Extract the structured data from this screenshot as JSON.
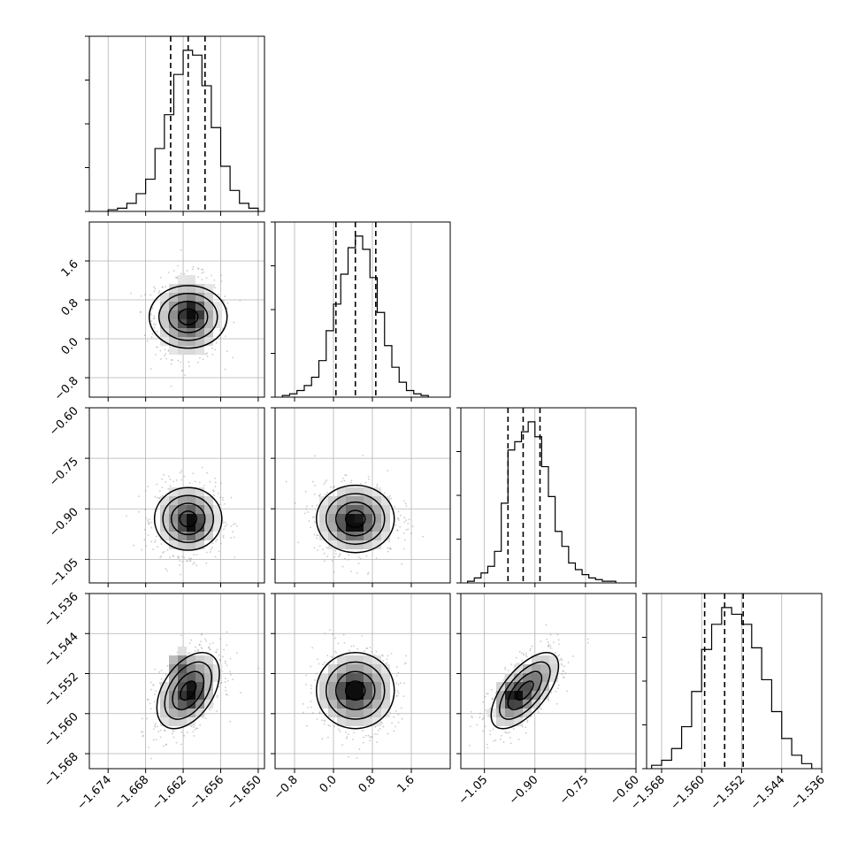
{
  "colors": {
    "ink": "#000000",
    "grid": "#b0b0b0",
    "points": "#8c8c8c",
    "fill_dark": "#000000",
    "fill_light": "#ffffff"
  },
  "chart_data": [
    {
      "type": "histogram",
      "panel": "p0_hist",
      "param_index": 0,
      "xlim": [
        -1.677,
        -1.649
      ],
      "bin_edges": [
        -1.674,
        -1.6725,
        -1.671,
        -1.6695,
        -1.668,
        -1.6665,
        -1.665,
        -1.6635,
        -1.662,
        -1.6605,
        -1.659,
        -1.6575,
        -1.656,
        -1.6545,
        -1.653,
        -1.6515,
        -1.65
      ],
      "counts": [
        1,
        2,
        5,
        11,
        20,
        39,
        60,
        85,
        100,
        97,
        78,
        52,
        28,
        13,
        5,
        2
      ],
      "quantiles_16_50_84": [
        -1.664,
        -1.6612,
        -1.6585
      ],
      "grid": true
    },
    {
      "type": "histogram",
      "panel": "p1_hist",
      "param_index": 1,
      "xlim": [
        -1.2,
        2.4
      ],
      "bin_edges": [
        -1.05,
        -0.9,
        -0.75,
        -0.6,
        -0.45,
        -0.3,
        -0.15,
        0.0,
        0.15,
        0.3,
        0.45,
        0.6,
        0.75,
        0.9,
        1.05,
        1.2,
        1.35,
        1.5,
        1.65,
        1.8,
        1.95
      ],
      "counts": [
        1,
        2,
        4,
        7,
        12,
        22,
        40,
        56,
        74,
        90,
        97,
        89,
        72,
        51,
        31,
        18,
        9,
        4,
        2,
        1
      ],
      "quantiles_16_50_84": [
        0.05,
        0.45,
        0.87
      ],
      "grid": true
    },
    {
      "type": "histogram",
      "panel": "p2_hist",
      "param_index": 2,
      "xlim": [
        -1.12,
        -0.6
      ],
      "bin_edges": [
        -1.1,
        -1.08,
        -1.06,
        -1.04,
        -1.02,
        -1.0,
        -0.98,
        -0.96,
        -0.94,
        -0.92,
        -0.9,
        -0.88,
        -0.86,
        -0.84,
        -0.82,
        -0.8,
        -0.78,
        -0.76,
        -0.74,
        -0.72,
        -0.7,
        -0.68,
        -0.66
      ],
      "counts": [
        1,
        3,
        6,
        10,
        19,
        48,
        80,
        85,
        91,
        97,
        88,
        70,
        52,
        31,
        22,
        12,
        8,
        5,
        3,
        2,
        1,
        1
      ],
      "quantiles_16_50_84": [
        -0.98,
        -0.935,
        -0.885
      ],
      "grid": true
    },
    {
      "type": "histogram",
      "panel": "p3_hist",
      "param_index": 3,
      "xlim": [
        -1.571,
        -1.536
      ],
      "bin_edges": [
        -1.57,
        -1.568,
        -1.566,
        -1.564,
        -1.562,
        -1.56,
        -1.558,
        -1.556,
        -1.554,
        -1.552,
        -1.55,
        -1.548,
        -1.546,
        -1.544,
        -1.542,
        -1.54,
        -1.538
      ],
      "counts": [
        2,
        5,
        12,
        25,
        46,
        71,
        86,
        96,
        92,
        86,
        72,
        53,
        34,
        18,
        8,
        3
      ],
      "quantiles_16_50_84": [
        -1.5594,
        -1.5554,
        -1.5517
      ],
      "grid": true
    },
    {
      "type": "scatter",
      "style": "2d-density",
      "panel": "p1_vs_p0",
      "xlim": [
        -1.677,
        -1.649
      ],
      "ylim": [
        -1.2,
        2.4
      ],
      "mean": [
        -1.6612,
        0.45
      ],
      "sd": [
        0.0025,
        0.4
      ],
      "correlation": 0.0,
      "density_peaks": [
        [
          -1.6605,
          0.5
        ]
      ],
      "grid": true
    },
    {
      "type": "scatter",
      "style": "2d-density",
      "panel": "p2_vs_p0",
      "xlim": [
        -1.677,
        -1.649
      ],
      "ylim": [
        -1.12,
        -0.6
      ],
      "mean": [
        -1.6612,
        -0.93
      ],
      "sd": [
        0.0025,
        0.05
      ],
      "correlation": 0.0,
      "density_peaks": [
        [
          -1.6605,
          -0.95
        ]
      ],
      "grid": true
    },
    {
      "type": "scatter",
      "style": "2d-density",
      "panel": "p2_vs_p1",
      "xlim": [
        -1.2,
        2.4
      ],
      "ylim": [
        -1.12,
        -0.6
      ],
      "mean": [
        0.45,
        -0.93
      ],
      "sd": [
        0.4,
        0.05
      ],
      "correlation": 0.0,
      "density_peaks": [
        [
          0.4,
          -0.95
        ]
      ],
      "grid": true
    },
    {
      "type": "scatter",
      "style": "2d-density",
      "panel": "p3_vs_p0",
      "xlim": [
        -1.677,
        -1.649
      ],
      "ylim": [
        -1.571,
        -1.536
      ],
      "mean": [
        -1.6612,
        -1.5554
      ],
      "sd": [
        0.0025,
        0.0038
      ],
      "correlation": 0.45,
      "density_peaks": [
        [
          -1.6625,
          -1.5505
        ],
        [
          -1.6605,
          -1.5565
        ]
      ],
      "grid": true
    },
    {
      "type": "scatter",
      "style": "2d-density",
      "panel": "p3_vs_p1",
      "xlim": [
        -1.2,
        2.4
      ],
      "ylim": [
        -1.571,
        -1.536
      ],
      "mean": [
        0.45,
        -1.5554
      ],
      "sd": [
        0.4,
        0.0038
      ],
      "correlation": 0.0,
      "density_peaks": [
        [
          0.4,
          -1.5554
        ]
      ],
      "grid": true
    },
    {
      "type": "scatter",
      "style": "2d-density",
      "panel": "p3_vs_p2",
      "xlim": [
        -1.12,
        -0.6
      ],
      "ylim": [
        -1.571,
        -1.536
      ],
      "mean": [
        -0.93,
        -1.5554
      ],
      "sd": [
        0.05,
        0.0038
      ],
      "correlation": 0.65,
      "density_peaks": [
        [
          -0.97,
          -1.5565
        ]
      ],
      "grid": true
    }
  ],
  "axes": {
    "p0": {
      "lim": [
        -1.677,
        -1.649
      ],
      "ticks": [
        -1.674,
        -1.668,
        -1.662,
        -1.656,
        -1.65
      ],
      "tick_labels": [
        "−1.674",
        "−1.668",
        "−1.662",
        "−1.656",
        "−1.650"
      ]
    },
    "p1": {
      "lim": [
        -1.2,
        2.4
      ],
      "ticks": [
        -0.8,
        0.0,
        0.8,
        1.6
      ],
      "tick_labels": [
        "−0.8",
        "0.0",
        "0.8",
        "1.6"
      ]
    },
    "p2": {
      "lim": [
        -1.12,
        -0.6
      ],
      "ticks": [
        -1.05,
        -0.9,
        -0.75,
        -0.6
      ],
      "tick_labels": [
        "−1.05",
        "−0.90",
        "−0.75",
        "−0.60"
      ]
    },
    "p3": {
      "lim": [
        -1.571,
        -1.536
      ],
      "ticks": [
        -1.568,
        -1.56,
        -1.552,
        -1.544,
        -1.536
      ],
      "tick_labels": [
        "−1.568",
        "−1.560",
        "−1.552",
        "−1.544",
        "−1.536"
      ]
    }
  }
}
